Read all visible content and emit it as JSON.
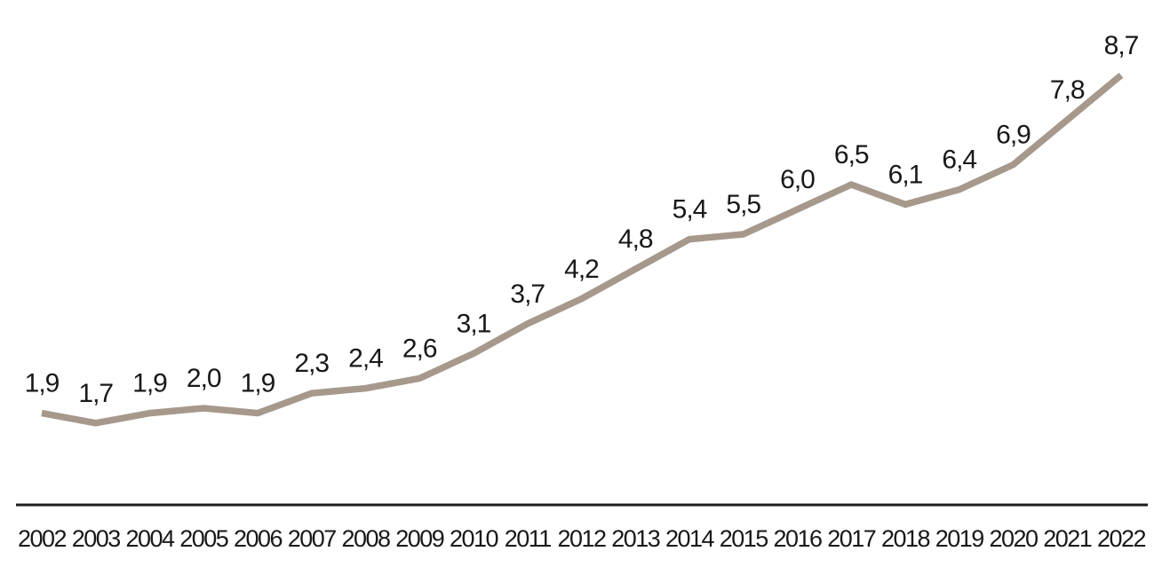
{
  "chart_data": {
    "type": "line",
    "title": "",
    "xlabel": "",
    "ylabel": "",
    "categories": [
      "2002",
      "2003",
      "2004",
      "2005",
      "2006",
      "2007",
      "2008",
      "2009",
      "2010",
      "2011",
      "2012",
      "2013",
      "2014",
      "2015",
      "2016",
      "2017",
      "2018",
      "2019",
      "2020",
      "2021",
      "2022"
    ],
    "values": [
      1.9,
      1.7,
      1.9,
      2.0,
      1.9,
      2.3,
      2.4,
      2.6,
      3.1,
      3.7,
      4.2,
      4.8,
      5.4,
      5.5,
      6.0,
      6.5,
      6.1,
      6.4,
      6.9,
      7.8,
      8.7
    ],
    "point_labels": [
      "1,9",
      "1,7",
      "1,9",
      "2,0",
      "1,9",
      "2,3",
      "2,4",
      "2,6",
      "3,1",
      "3,7",
      "4,2",
      "4,8",
      "5,4",
      "5,5",
      "6,0",
      "6,5",
      "6,1",
      "6,4",
      "6,9",
      "7,8",
      "8,7"
    ],
    "decimal_separator": ",",
    "ylim": [
      0,
      10
    ],
    "grid": false,
    "legend_position": "none",
    "y_axis_visible": false,
    "colors": {
      "line": "#a6998c",
      "axis": "#1f1c1b",
      "point_label": "#1a1817",
      "tick_label": "#1a1817",
      "background": "#ffffff"
    }
  }
}
